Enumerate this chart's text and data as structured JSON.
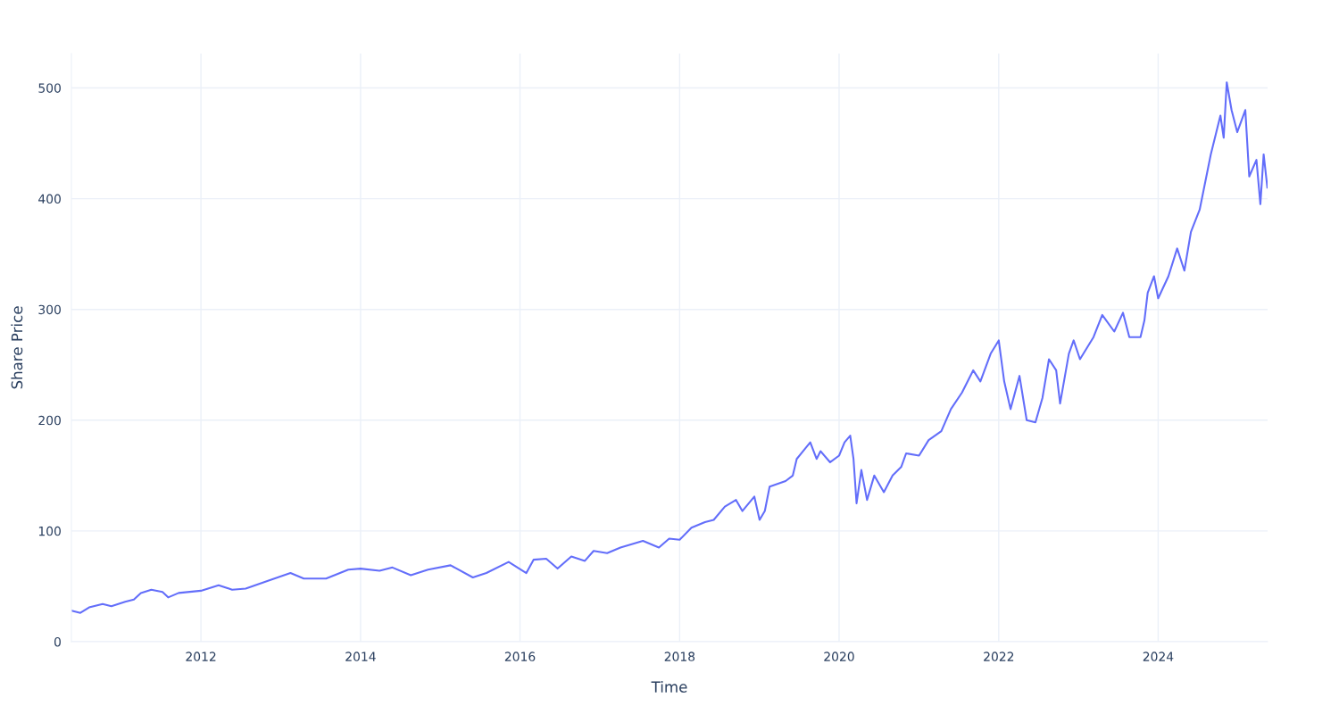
{
  "chart_data": {
    "type": "line",
    "xlabel": "Time",
    "ylabel": "Share Price",
    "x": [
      "2010-05-19",
      "2010-06-28",
      "2010-08-07",
      "2010-10-08",
      "2010-11-17",
      "2011-01-19",
      "2011-02-28",
      "2011-04-01",
      "2011-05-19",
      "2011-07-09",
      "2011-08-04",
      "2011-09-21",
      "2012-01-01",
      "2012-03-22",
      "2012-05-23",
      "2012-07-24",
      "2012-11-03",
      "2013-02-14",
      "2013-04-16",
      "2013-07-27",
      "2013-11-06",
      "2014-01-01",
      "2014-03-29",
      "2014-05-27",
      "2014-08-19",
      "2014-11-06",
      "2015-02-17",
      "2015-05-30",
      "2015-07-31",
      "2015-11-10",
      "2016-01-30",
      "2016-03-03",
      "2016-04-30",
      "2016-06-21",
      "2016-08-23",
      "2016-10-24",
      "2016-12-03",
      "2017-02-03",
      "2017-04-05",
      "2017-07-17",
      "2017-09-28",
      "2017-11-14",
      "2018-01-01",
      "2018-02-24",
      "2018-04-27",
      "2018-06-06",
      "2018-07-27",
      "2018-09-16",
      "2018-10-15",
      "2018-12-09",
      "2019-01-02",
      "2019-01-26",
      "2019-02-17",
      "2019-05-01",
      "2019-06-03",
      "2019-06-21",
      "2019-08-22",
      "2019-09-20",
      "2019-10-08",
      "2019-11-21",
      "2020-01-01",
      "2020-01-26",
      "2020-02-21",
      "2020-03-07",
      "2020-03-21",
      "2020-04-12",
      "2020-05-08",
      "2020-06-10",
      "2020-07-24",
      "2020-09-02",
      "2020-10-12",
      "2020-11-03",
      "2021-01-01",
      "2021-02-14",
      "2021-04-13",
      "2021-05-27",
      "2021-07-17",
      "2021-09-06",
      "2021-10-09",
      "2021-11-25",
      "2022-01-01",
      "2022-01-26",
      "2022-02-24",
      "2022-04-06",
      "2022-05-09",
      "2022-06-18",
      "2022-07-20",
      "2022-08-19",
      "2022-09-21",
      "2022-10-09",
      "2022-11-18",
      "2022-12-10",
      "2023-01-08",
      "2023-03-11",
      "2023-04-20",
      "2023-06-14",
      "2023-07-24",
      "2023-08-22",
      "2023-10-12",
      "2023-10-30",
      "2023-11-14",
      "2023-12-13",
      "2024-01-01",
      "2024-02-17",
      "2024-03-28",
      "2024-04-30",
      "2024-05-30",
      "2024-07-09",
      "2024-08-29",
      "2024-10-12",
      "2024-10-27",
      "2024-11-10",
      "2024-12-02",
      "2024-12-28",
      "2025-02-03",
      "2025-02-21",
      "2025-03-26",
      "2025-04-13",
      "2025-04-28",
      "2025-05-15"
    ],
    "series": [
      {
        "color": "#636efa",
        "values": [
          28,
          26,
          31,
          34,
          32,
          36,
          38,
          44,
          47,
          45,
          40,
          44,
          46,
          51,
          47,
          48,
          55,
          62,
          57,
          57,
          65,
          66,
          64,
          67,
          60,
          65,
          69,
          58,
          62,
          72,
          62,
          74,
          75,
          66,
          77,
          73,
          82,
          80,
          85,
          91,
          85,
          93,
          92,
          103,
          108,
          110,
          122,
          128,
          118,
          131,
          110,
          118,
          140,
          145,
          150,
          165,
          180,
          165,
          172,
          162,
          168,
          180,
          186,
          165,
          125,
          155,
          128,
          150,
          135,
          150,
          158,
          170,
          168,
          182,
          190,
          210,
          225,
          245,
          235,
          260,
          272,
          235,
          210,
          240,
          200,
          198,
          220,
          255,
          245,
          215,
          260,
          272,
          255,
          275,
          295,
          280,
          297,
          275,
          275,
          290,
          315,
          330,
          310,
          330,
          355,
          335,
          370,
          390,
          440,
          475,
          455,
          505,
          480,
          460,
          480,
          420,
          435,
          395,
          440,
          410
        ]
      }
    ],
    "xlim": [
      "2010-05-18",
      "2025-05-16"
    ],
    "xticks": [
      "2012",
      "2014",
      "2016",
      "2018",
      "2020",
      "2022",
      "2024"
    ],
    "ylim": [
      0,
      531
    ],
    "yticks": [
      0,
      100,
      200,
      300,
      400,
      500
    ],
    "grid": true,
    "line_style": "solid"
  }
}
